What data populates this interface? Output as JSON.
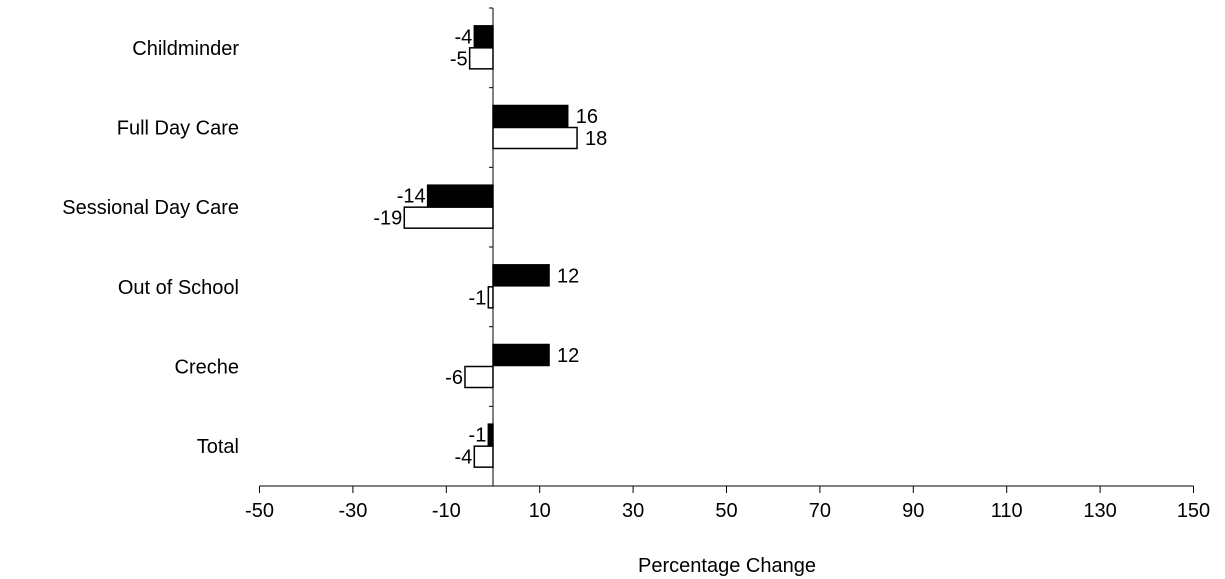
{
  "chart_data": {
    "type": "bar",
    "orientation": "horizontal",
    "categories": [
      "Childminder",
      "Full Day Care",
      "Sessional Day Care",
      "Out of School",
      "Creche",
      "Total"
    ],
    "series": [
      {
        "values": [
          -4,
          16,
          -14,
          12,
          12,
          -1
        ],
        "color": "#000000",
        "fill": "solid"
      },
      {
        "values": [
          -5,
          18,
          -19,
          -1,
          -6,
          -4
        ],
        "color": "#ffffff",
        "fill": "outline"
      }
    ],
    "data_labels": {
      "series_0": [
        "-4",
        "16",
        "-14",
        "12",
        "12",
        "-1"
      ],
      "series_1": [
        "-5",
        "18",
        "-19",
        "-1",
        "-6",
        "-4"
      ]
    },
    "x_ticks": [
      "-50",
      "-30",
      "-10",
      "10",
      "30",
      "50",
      "70",
      "90",
      "110",
      "130",
      "150"
    ],
    "xlim": [
      -50,
      150
    ],
    "xlabel": "Percentage Change",
    "ylabel": "",
    "title": "",
    "grid": false,
    "legend": "none"
  }
}
